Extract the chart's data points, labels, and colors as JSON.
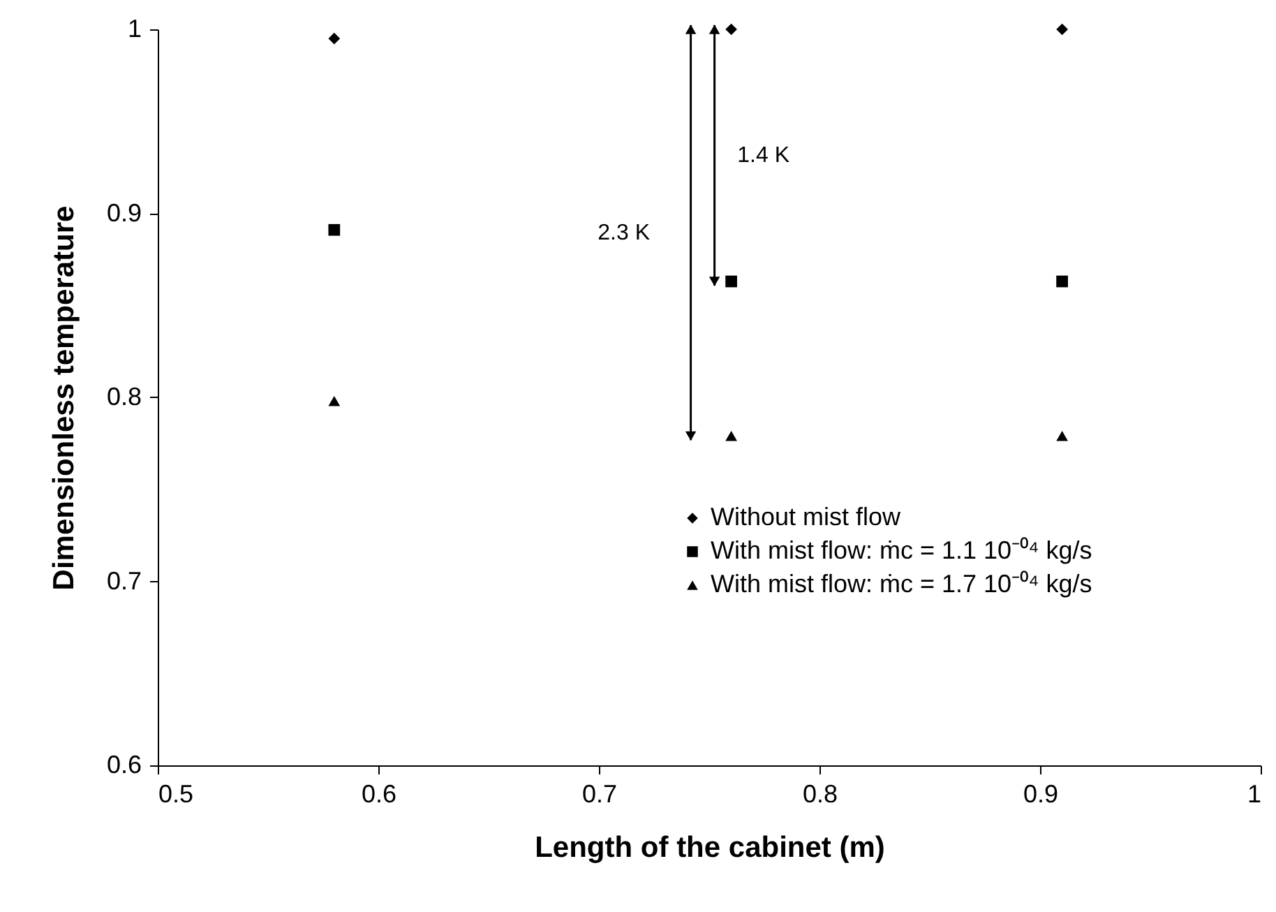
{
  "chart_data": {
    "type": "scatter",
    "xlabel": "Length of the cabinet (m)",
    "ylabel": "Dimensionless temperature",
    "x": [
      0.58,
      0.76,
      0.91
    ],
    "series": [
      {
        "name": "Without mist flow",
        "color": "#000000",
        "marker": "diamond",
        "values": [
          0.995,
          1.0,
          1.0
        ]
      },
      {
        "name": "With mist flow: ṁc = 1.1 10⁻⁰⁴ kg/s",
        "color": "#000000",
        "marker": "square",
        "values": [
          0.891,
          0.863,
          0.863
        ]
      },
      {
        "name": "With mist flow: ṁc = 1.7 10⁻⁰⁴ kg/s",
        "color": "#000000",
        "marker": "triangle",
        "values": [
          0.798,
          0.779,
          0.779
        ]
      }
    ],
    "annotations": [
      "1.4 K",
      "2.3 K"
    ],
    "xlim": [
      0.5,
      1.0
    ],
    "xticks": [
      0.5,
      0.6,
      0.7,
      0.8,
      0.9,
      1
    ],
    "ylim": [
      0.6,
      1.0
    ],
    "yticks": [
      0.6,
      0.7,
      0.8,
      0.9,
      1
    ],
    "grid": false,
    "legend": "bottom right"
  }
}
